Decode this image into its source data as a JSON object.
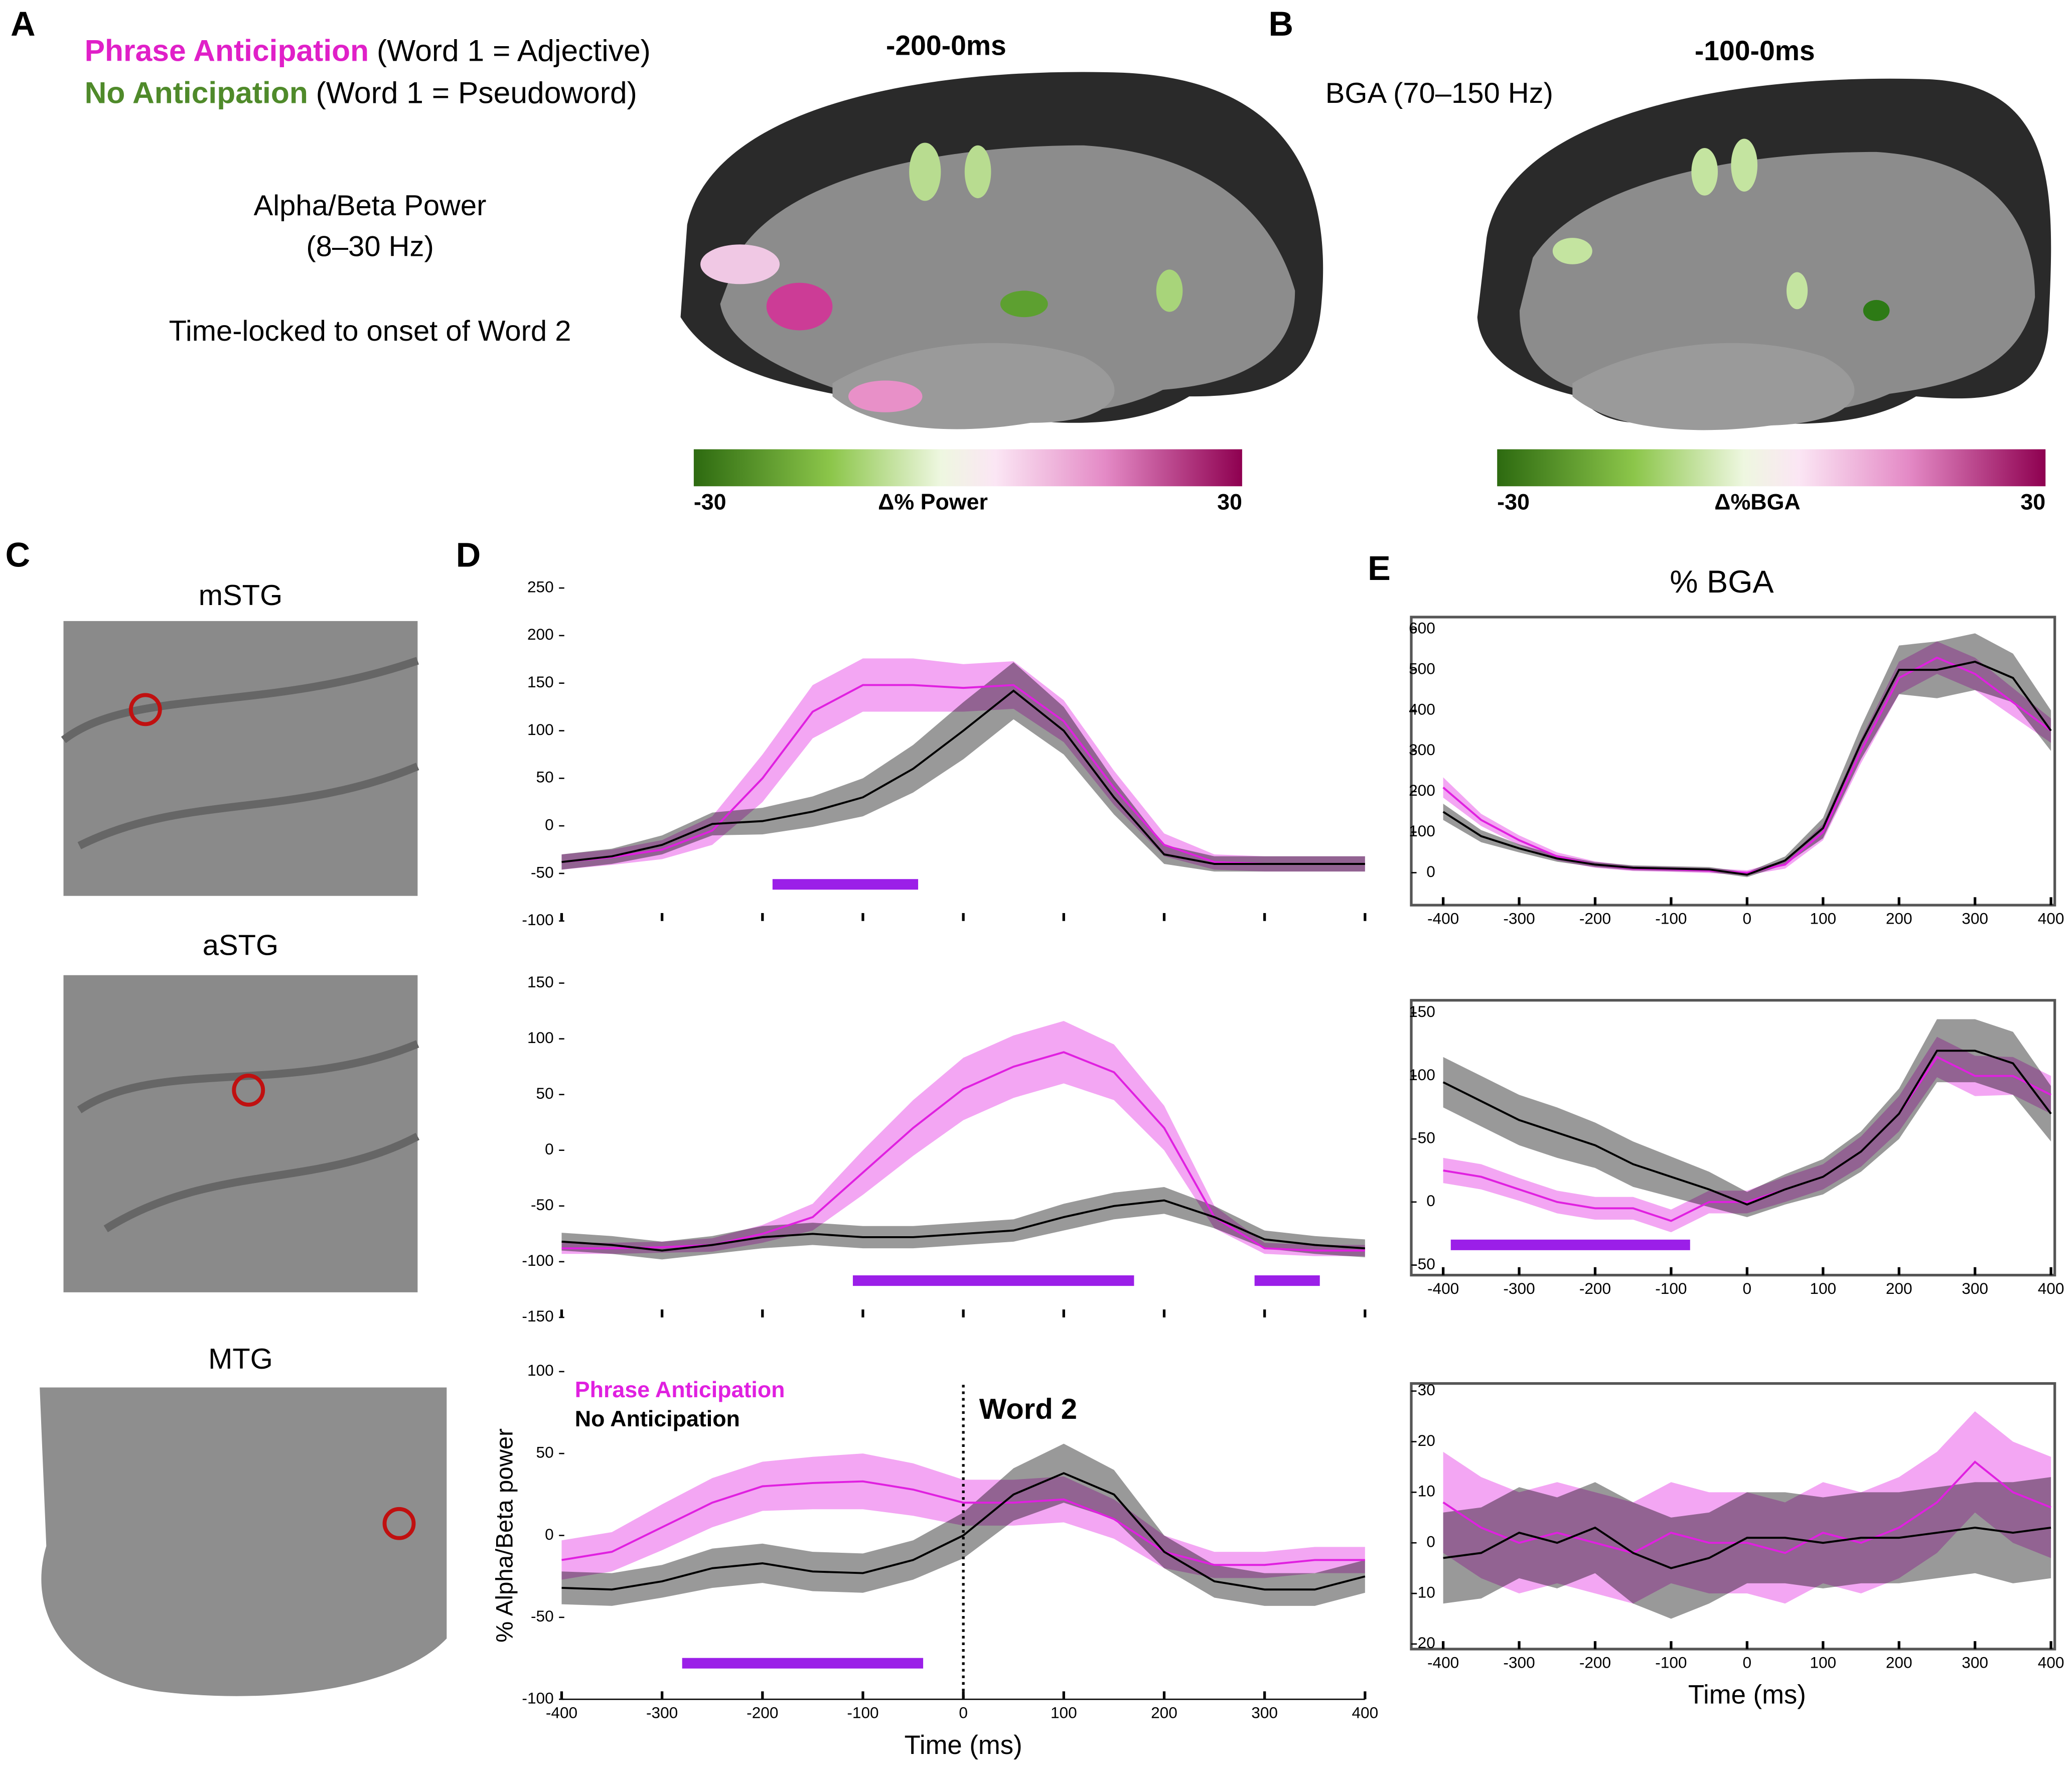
{
  "panels": {
    "a": "A",
    "b": "B",
    "c": "C",
    "d": "D",
    "e": "E"
  },
  "legend_top": {
    "pink_name": "Phrase Anticipation",
    "pink_desc": "(Word 1 = Adjective)",
    "green_name": "No Anticipation",
    "green_desc": "(Word 1 = Pseudoword)"
  },
  "panel_a": {
    "window": "-200-0ms",
    "band_line1": "Alpha/Beta Power",
    "band_line2": "(8–30 Hz)",
    "lock": "Time-locked to onset of Word 2"
  },
  "panel_b": {
    "window": "-100-0ms",
    "band": "BGA (70–150 Hz)"
  },
  "colorbars": [
    {
      "label": "Δ% Power",
      "min": -30,
      "max": 30
    },
    {
      "label": "Δ%BGA",
      "min": -30,
      "max": 30
    }
  ],
  "regions": [
    "mSTG",
    "aSTG",
    "MTG"
  ],
  "e_title": "% BGA",
  "chart_data": [
    {
      "type": "line",
      "x": [
        -400,
        -350,
        -300,
        -250,
        -200,
        -150,
        -100,
        -50,
        0,
        50,
        100,
        150,
        200,
        250,
        300,
        350,
        400
      ],
      "xlim": [
        -400,
        400
      ],
      "ylim": [
        -100,
        250
      ],
      "yticks": [
        -100,
        -50,
        0,
        50,
        100,
        150,
        200,
        250
      ],
      "xticks": [
        -400,
        -300,
        -200,
        -100,
        0,
        100,
        200,
        300,
        400
      ],
      "show_xtick_labels": false,
      "frame": false,
      "series": [
        {
          "color": "#e020e0",
          "values": [
            -38,
            -33,
            -25,
            -5,
            50,
            120,
            148,
            148,
            145,
            148,
            110,
            40,
            -20,
            -38,
            -40,
            -40,
            -40
          ],
          "error": [
            8,
            8,
            10,
            15,
            25,
            28,
            28,
            28,
            25,
            25,
            22,
            18,
            12,
            8,
            8,
            8,
            8
          ]
        },
        {
          "color": "#000000",
          "values": [
            -38,
            -32,
            -20,
            2,
            5,
            15,
            30,
            60,
            100,
            142,
            100,
            30,
            -30,
            -40,
            -40,
            -40,
            -40
          ],
          "error": [
            8,
            8,
            10,
            12,
            14,
            16,
            20,
            25,
            30,
            30,
            25,
            18,
            10,
            8,
            8,
            8,
            8
          ]
        }
      ],
      "significance_bars": [
        [
          -190,
          -45
        ]
      ],
      "bar_color": "#9b1fe8"
    },
    {
      "type": "line",
      "x": [
        -400,
        -350,
        -300,
        -250,
        -200,
        -150,
        -100,
        -50,
        0,
        50,
        100,
        150,
        200,
        250,
        300,
        350,
        400
      ],
      "xlim": [
        -400,
        400
      ],
      "ylim": [
        -150,
        150
      ],
      "yticks": [
        -150,
        -100,
        -50,
        0,
        50,
        100,
        150
      ],
      "xticks": [
        -400,
        -300,
        -200,
        -100,
        0,
        100,
        200,
        300,
        400
      ],
      "show_xtick_labels": false,
      "frame": false,
      "series": [
        {
          "color": "#e020e0",
          "values": [
            -88,
            -88,
            -87,
            -85,
            -75,
            -60,
            -20,
            20,
            55,
            75,
            88,
            70,
            20,
            -60,
            -88,
            -90,
            -90
          ],
          "error": [
            5,
            5,
            5,
            6,
            8,
            12,
            20,
            25,
            28,
            28,
            28,
            25,
            20,
            10,
            5,
            5,
            5
          ]
        },
        {
          "color": "#000000",
          "values": [
            -82,
            -85,
            -90,
            -85,
            -78,
            -75,
            -78,
            -78,
            -75,
            -72,
            -60,
            -50,
            -45,
            -60,
            -80,
            -85,
            -88
          ],
          "error": [
            8,
            8,
            8,
            8,
            10,
            10,
            10,
            10,
            10,
            10,
            12,
            12,
            12,
            10,
            8,
            8,
            8
          ]
        }
      ],
      "significance_bars": [
        [
          -110,
          170
        ],
        [
          290,
          355
        ]
      ],
      "bar_color": "#9b1fe8"
    },
    {
      "type": "line",
      "x": [
        -400,
        -350,
        -300,
        -250,
        -200,
        -150,
        -100,
        -50,
        0,
        50,
        100,
        150,
        200,
        250,
        300,
        350,
        400
      ],
      "xlim": [
        -400,
        400
      ],
      "ylim": [
        -100,
        100
      ],
      "yticks": [
        -100,
        -50,
        0,
        50,
        100
      ],
      "xticks": [
        -400,
        -300,
        -200,
        -100,
        0,
        100,
        200,
        300,
        400
      ],
      "show_xtick_labels": true,
      "frame": false,
      "xlabel": "Time (ms)",
      "ylabel": "% Alpha/Beta power",
      "series": [
        {
          "name": "Phrase Anticipation",
          "color": "#e020e0",
          "values": [
            -15,
            -10,
            5,
            20,
            30,
            32,
            33,
            28,
            20,
            20,
            22,
            10,
            -10,
            -18,
            -18,
            -15,
            -15
          ],
          "error": [
            12,
            12,
            14,
            15,
            15,
            16,
            17,
            16,
            14,
            14,
            14,
            12,
            10,
            8,
            8,
            8,
            8
          ]
        },
        {
          "name": "No Anticipation",
          "color": "#000000",
          "values": [
            -32,
            -33,
            -28,
            -20,
            -17,
            -22,
            -23,
            -15,
            0,
            25,
            38,
            25,
            -10,
            -28,
            -33,
            -33,
            -25
          ],
          "error": [
            10,
            10,
            10,
            12,
            12,
            12,
            12,
            12,
            14,
            16,
            18,
            15,
            10,
            10,
            10,
            10,
            10
          ]
        }
      ],
      "significance_bars": [
        [
          -280,
          -40
        ]
      ],
      "bar_color": "#9b1fe8",
      "annotations": [
        {
          "text": "Word 2",
          "x": 0
        }
      ]
    },
    {
      "type": "line",
      "x": [
        -400,
        -350,
        -300,
        -250,
        -200,
        -150,
        -100,
        -50,
        0,
        50,
        100,
        150,
        200,
        250,
        300,
        350,
        400
      ],
      "xlim": [
        -442,
        405
      ],
      "ylim": [
        -80,
        630
      ],
      "yticks": [
        0,
        100,
        200,
        300,
        400,
        500,
        600
      ],
      "xticks": [
        -400,
        -300,
        -200,
        -100,
        0,
        100,
        200,
        300,
        400
      ],
      "show_xtick_labels": true,
      "frame": true,
      "series": [
        {
          "color": "#e020e0",
          "values": [
            210,
            130,
            80,
            40,
            20,
            10,
            8,
            5,
            0,
            20,
            100,
            300,
            480,
            530,
            490,
            420,
            350
          ],
          "error": [
            25,
            15,
            12,
            10,
            8,
            6,
            6,
            6,
            6,
            10,
            20,
            30,
            40,
            40,
            40,
            35,
            30
          ]
        },
        {
          "color": "#000000",
          "values": [
            150,
            90,
            60,
            35,
            20,
            12,
            10,
            8,
            -5,
            30,
            110,
            320,
            500,
            500,
            520,
            480,
            350
          ],
          "error": [
            20,
            15,
            10,
            8,
            6,
            6,
            6,
            6,
            6,
            10,
            25,
            40,
            60,
            70,
            70,
            60,
            50
          ]
        }
      ],
      "significance_bars": [],
      "bar_color": "#9b1fe8"
    },
    {
      "type": "line",
      "x": [
        -400,
        -350,
        -300,
        -250,
        -200,
        -150,
        -100,
        -50,
        0,
        50,
        100,
        150,
        200,
        250,
        300,
        350,
        400
      ],
      "xlim": [
        -442,
        405
      ],
      "ylim": [
        -58,
        160
      ],
      "yticks": [
        -50,
        0,
        50,
        100,
        150
      ],
      "xticks": [
        -400,
        -300,
        -200,
        -100,
        0,
        100,
        200,
        300,
        400
      ],
      "show_xtick_labels": true,
      "frame": true,
      "series": [
        {
          "color": "#e020e0",
          "values": [
            25,
            20,
            10,
            0,
            -5,
            -5,
            -15,
            0,
            0,
            10,
            20,
            40,
            70,
            115,
            100,
            100,
            85
          ],
          "error": [
            10,
            10,
            9,
            9,
            9,
            9,
            9,
            9,
            9,
            10,
            10,
            12,
            14,
            16,
            16,
            15,
            15
          ]
        },
        {
          "color": "#000000",
          "values": [
            95,
            80,
            65,
            55,
            45,
            30,
            20,
            10,
            -2,
            10,
            20,
            40,
            70,
            120,
            120,
            110,
            70
          ],
          "error": [
            20,
            20,
            20,
            20,
            18,
            18,
            16,
            14,
            10,
            12,
            14,
            16,
            20,
            25,
            25,
            25,
            22
          ]
        }
      ],
      "significance_bars": [
        [
          -390,
          -75
        ]
      ],
      "bar_color": "#9b1fe8"
    },
    {
      "type": "line",
      "x": [
        -400,
        -350,
        -300,
        -250,
        -200,
        -150,
        -100,
        -50,
        0,
        50,
        100,
        150,
        200,
        250,
        300,
        350,
        400
      ],
      "xlim": [
        -442,
        405
      ],
      "ylim": [
        -21,
        31.5
      ],
      "yticks": [
        -20,
        -10,
        0,
        10,
        20,
        30
      ],
      "xticks": [
        -400,
        -300,
        -200,
        -100,
        0,
        100,
        200,
        300,
        400
      ],
      "show_xtick_labels": true,
      "frame": true,
      "xlabel": "Time (ms)",
      "series": [
        {
          "color": "#e020e0",
          "values": [
            8,
            3,
            0,
            2,
            0,
            -2,
            2,
            0,
            0,
            -2,
            2,
            0,
            3,
            8,
            16,
            10,
            7
          ],
          "error": [
            10,
            10,
            10,
            10,
            10,
            10,
            10,
            10,
            10,
            10,
            10,
            10,
            10,
            10,
            10,
            10,
            10
          ]
        },
        {
          "color": "#000000",
          "values": [
            -3,
            -2,
            2,
            0,
            3,
            -2,
            -5,
            -3,
            1,
            1,
            0,
            1,
            1,
            2,
            3,
            2,
            3
          ],
          "error": [
            9,
            9,
            9,
            9,
            9,
            10,
            10,
            9,
            9,
            9,
            9,
            9,
            9,
            9,
            9,
            10,
            10
          ]
        }
      ],
      "significance_bars": [],
      "bar_color": "#9b1fe8"
    }
  ]
}
